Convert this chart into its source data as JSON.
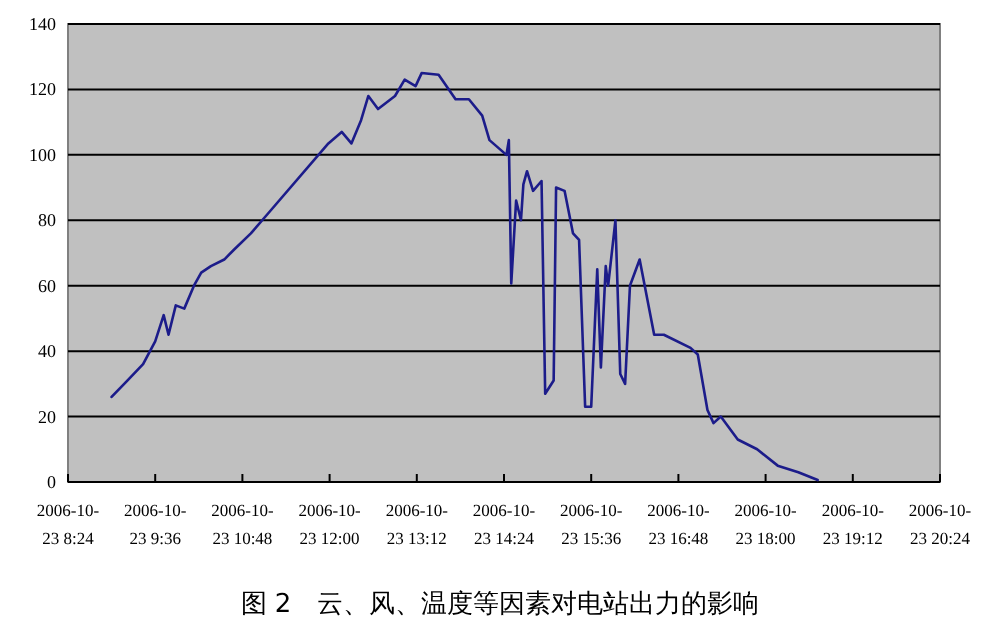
{
  "chart_data": {
    "type": "line",
    "x": [
      "2006-10-23T09:00",
      "2006-10-23T09:13",
      "2006-10-23T09:26",
      "2006-10-23T09:36",
      "2006-10-23T09:43",
      "2006-10-23T09:47",
      "2006-10-23T09:53",
      "2006-10-23T10:00",
      "2006-10-23T10:08",
      "2006-10-23T10:14",
      "2006-10-23T10:22",
      "2006-10-23T10:33",
      "2006-10-23T10:41",
      "2006-10-23T10:55",
      "2006-10-23T11:09",
      "2006-10-23T11:59",
      "2006-10-23T12:10",
      "2006-10-23T12:18",
      "2006-10-23T12:26",
      "2006-10-23T12:32",
      "2006-10-23T12:40",
      "2006-10-23T12:54",
      "2006-10-23T13:02",
      "2006-10-23T13:11",
      "2006-10-23T13:16",
      "2006-10-23T13:30",
      "2006-10-23T13:44",
      "2006-10-23T13:55",
      "2006-10-23T14:06",
      "2006-10-23T14:12",
      "2006-10-23T14:26",
      "2006-10-23T14:28",
      "2006-10-23T14:30",
      "2006-10-23T14:34",
      "2006-10-23T14:38",
      "2006-10-23T14:40",
      "2006-10-23T14:43",
      "2006-10-23T14:48",
      "2006-10-23T14:55",
      "2006-10-23T14:58",
      "2006-10-23T15:05",
      "2006-10-23T15:07",
      "2006-10-23T15:14",
      "2006-10-23T15:21",
      "2006-10-23T15:26",
      "2006-10-23T15:31",
      "2006-10-23T15:36",
      "2006-10-23T15:41",
      "2006-10-23T15:44",
      "2006-10-23T15:48",
      "2006-10-23T15:50",
      "2006-10-23T15:56",
      "2006-10-23T16:00",
      "2006-10-23T16:04",
      "2006-10-23T16:08",
      "2006-10-23T16:16",
      "2006-10-23T16:28",
      "2006-10-23T16:36",
      "2006-10-23T16:58",
      "2006-10-23T17:04",
      "2006-10-23T17:12",
      "2006-10-23T17:17",
      "2006-10-23T17:23",
      "2006-10-23T17:37",
      "2006-10-23T17:53",
      "2006-10-23T18:10",
      "2006-10-23T18:27",
      "2006-10-23T18:43"
    ],
    "series": [
      {
        "color": "#1c1c8a",
        "values": [
          26,
          31,
          36,
          43,
          51,
          45,
          54,
          53,
          60,
          64,
          66,
          68,
          71,
          76,
          82,
          103.5,
          107,
          103.5,
          110.6,
          118,
          114,
          118,
          123,
          121,
          125,
          124.5,
          117,
          117,
          112,
          104.5,
          100,
          104.5,
          60.7,
          86,
          80,
          91,
          95,
          89,
          92,
          27,
          31,
          90,
          89,
          76,
          74,
          23,
          23,
          65,
          35,
          66,
          60,
          80,
          33,
          30,
          60,
          68,
          45,
          45,
          41,
          39,
          22,
          18,
          20,
          13,
          10,
          5,
          3,
          0.6
        ]
      }
    ],
    "xlim": [
      "2006-10-23T08:24",
      "2006-10-23T20:24"
    ],
    "xticks": [
      {
        "value": "2006-10-23T08:24",
        "label": "2006-10-\n23 8:24"
      },
      {
        "value": "2006-10-23T09:36",
        "label": "2006-10-\n23 9:36"
      },
      {
        "value": "2006-10-23T10:48",
        "label": "2006-10-\n23 10:48"
      },
      {
        "value": "2006-10-23T12:00",
        "label": "2006-10-\n23 12:00"
      },
      {
        "value": "2006-10-23T13:12",
        "label": "2006-10-\n23 13:12"
      },
      {
        "value": "2006-10-23T14:24",
        "label": "2006-10-\n23 14:24"
      },
      {
        "value": "2006-10-23T15:36",
        "label": "2006-10-\n23 15:36"
      },
      {
        "value": "2006-10-23T16:48",
        "label": "2006-10-\n23 16:48"
      },
      {
        "value": "2006-10-23T18:00",
        "label": "2006-10-\n23 18:00"
      },
      {
        "value": "2006-10-23T19:12",
        "label": "2006-10-\n23 19:12"
      },
      {
        "value": "2006-10-23T20:24",
        "label": "2006-10-\n23 20:24"
      }
    ],
    "ylim": [
      0,
      140
    ],
    "yticks": [
      0,
      20,
      40,
      60,
      80,
      100,
      120,
      140
    ],
    "grid": "y",
    "line_style": "solid",
    "annotations": [
      "图 2　云、风、温度等因素对电站出力的影响"
    ]
  }
}
